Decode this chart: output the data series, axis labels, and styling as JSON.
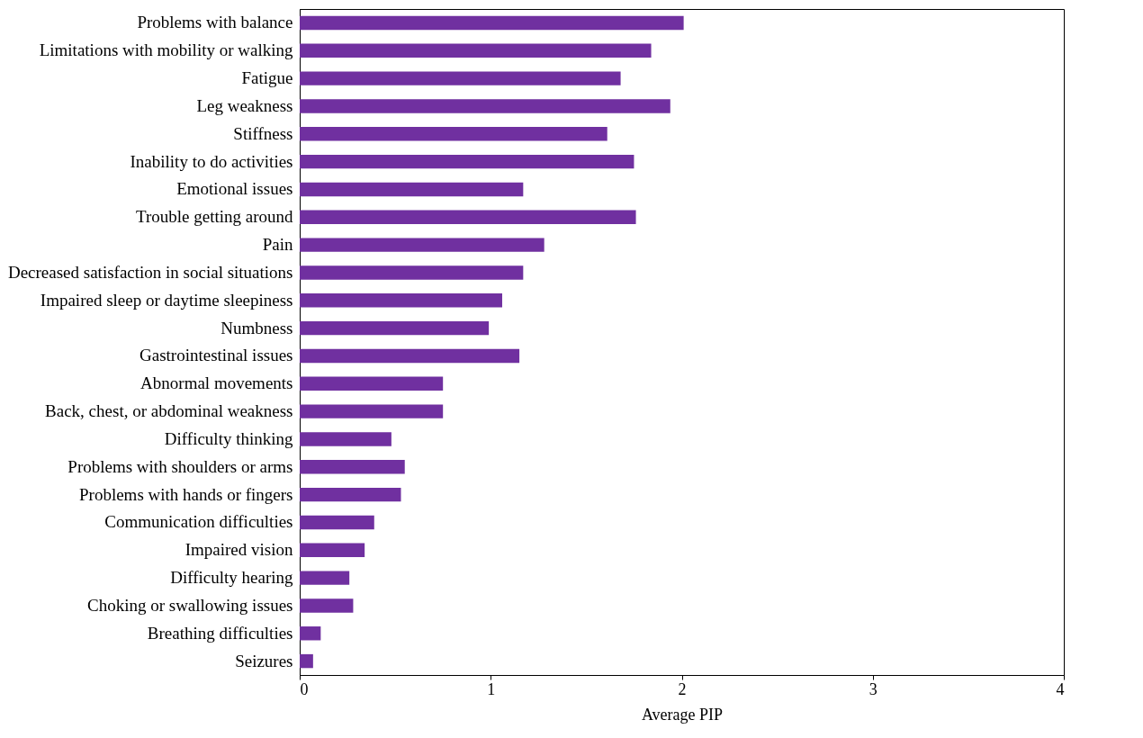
{
  "chart_data": {
    "type": "bar",
    "orientation": "horizontal",
    "xlabel": "Average PIP",
    "categories": [
      "Problems with balance",
      "Limitations with mobility or walking",
      "Fatigue",
      "Leg weakness",
      "Stiffness",
      "Inability to do activities",
      "Emotional issues",
      "Trouble getting around",
      "Pain",
      "Decreased satisfaction in social situations",
      "Impaired sleep or daytime sleepiness",
      "Numbness",
      "Gastrointestinal issues",
      "Abnormal movements",
      "Back, chest, or abdominal weakness",
      "Difficulty thinking",
      "Problems with shoulders or arms",
      "Problems with hands or fingers",
      "Communication difficulties",
      "Impaired vision",
      "Difficulty hearing",
      "Choking or swallowing issues",
      "Breathing difficulties",
      "Seizures"
    ],
    "values": [
      2.01,
      1.84,
      1.68,
      1.94,
      1.61,
      1.75,
      1.17,
      1.76,
      1.28,
      1.17,
      1.06,
      0.99,
      1.15,
      0.75,
      0.75,
      0.48,
      0.55,
      0.53,
      0.39,
      0.34,
      0.26,
      0.28,
      0.11,
      0.07
    ],
    "color": "#7030a0",
    "xlim": [
      0,
      4
    ],
    "xticks": [
      0,
      1,
      2,
      3,
      4
    ],
    "grid": false
  }
}
